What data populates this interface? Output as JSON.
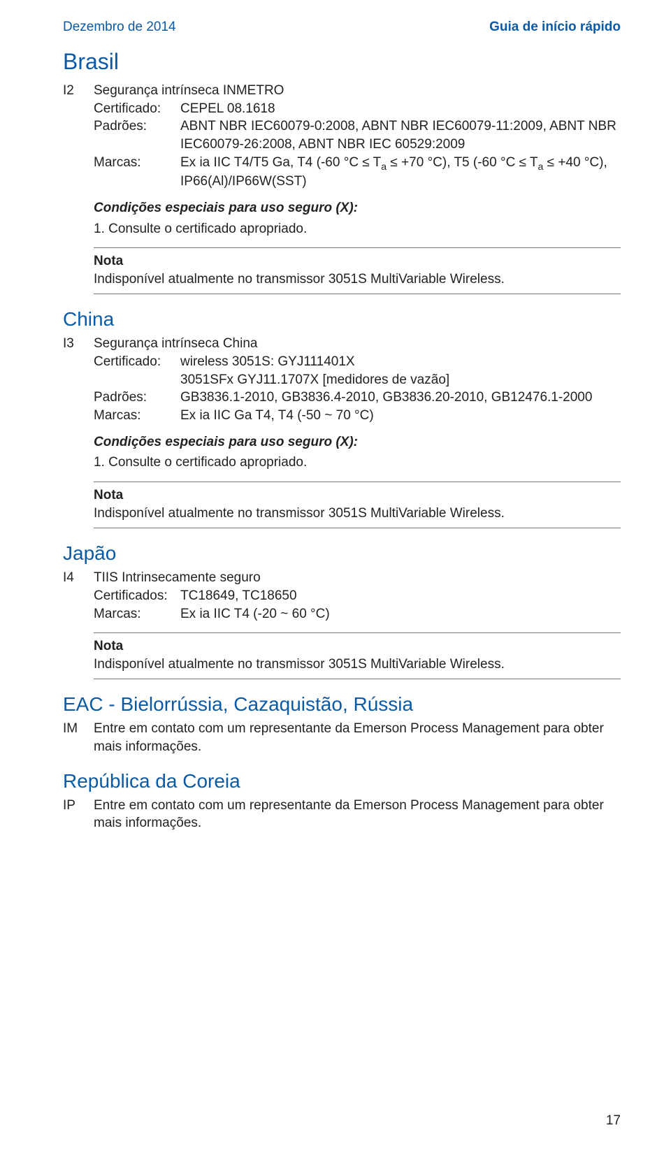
{
  "colors": {
    "brand": "#0b5aa6",
    "text": "#222222",
    "rule": "#777777",
    "background": "#ffffff"
  },
  "header": {
    "left": "Dezembro de 2014",
    "right": "Guia de início rápido"
  },
  "section_brasil": {
    "title": "Brasil",
    "code": "I2",
    "name": "Segurança intrínseca INMETRO",
    "cert_label": "Certificado:",
    "cert": "CEPEL 08.1618",
    "std_label": "Padrões:",
    "std": "ABNT NBR IEC60079-0:2008, ABNT NBR IEC60079-11:2009, ABNT NBR IEC60079-26:2008, ABNT NBR IEC 60529:2009",
    "marks_label": "Marcas:",
    "marks_pre1": "Ex ia IIC T4/T5 Ga, T4 (-60 °C ≤ T",
    "marks_sub1": "a",
    "marks_mid1": " ≤ +70 °C), T5 (-60 °C ≤ T",
    "marks_sub2": "a",
    "marks_post1": " ≤ +40 °C),",
    "marks_line2": "IP66(Al)/IP66W(SST)",
    "cond_title": "Condições especiais para uso seguro (X):",
    "cond_item": "1.   Consulte o certificado apropriado.",
    "note_label": "Nota",
    "note_text": "Indisponível atualmente no transmissor 3051S MultiVariable Wireless."
  },
  "section_china": {
    "title": "China",
    "code": "I3",
    "name": "Segurança intrínseca China",
    "cert_label": "Certificado:",
    "cert_line1": "wireless 3051S: GYJ111401X",
    "cert_line2": "3051SFx GYJ11.1707X [medidores de vazão]",
    "std_label": "Padrões:",
    "std": "GB3836.1-2010, GB3836.4-2010, GB3836.20-2010, GB12476.1-2000",
    "marks_label": "Marcas:",
    "marks": "Ex ia IIC Ga T4, T4 (-50 ~ 70 °C)",
    "cond_title": "Condições especiais para uso seguro (X):",
    "cond_item": "1.   Consulte o certificado apropriado.",
    "note_label": "Nota",
    "note_text": "Indisponível atualmente no transmissor 3051S MultiVariable Wireless."
  },
  "section_japao": {
    "title": "Japão",
    "code": "I4",
    "name": "TIIS Intrinsecamente seguro",
    "cert_label": "Certificados:",
    "cert": "TC18649, TC18650",
    "marks_label": "Marcas:",
    "marks": "Ex ia IIC T4 (-20 ~ 60 °C)",
    "note_label": "Nota",
    "note_text": "Indisponível atualmente no transmissor 3051S MultiVariable Wireless."
  },
  "section_eac": {
    "title": "EAC - Bielorrússia, Cazaquistão, Rússia",
    "code": "IM",
    "text": "Entre em contato com um representante da Emerson Process Management para obter mais informações."
  },
  "section_coreia": {
    "title": "República da Coreia",
    "code": "IP",
    "text": "Entre em contato com um representante da Emerson Process Management para obter mais informações."
  },
  "page_number": "17"
}
